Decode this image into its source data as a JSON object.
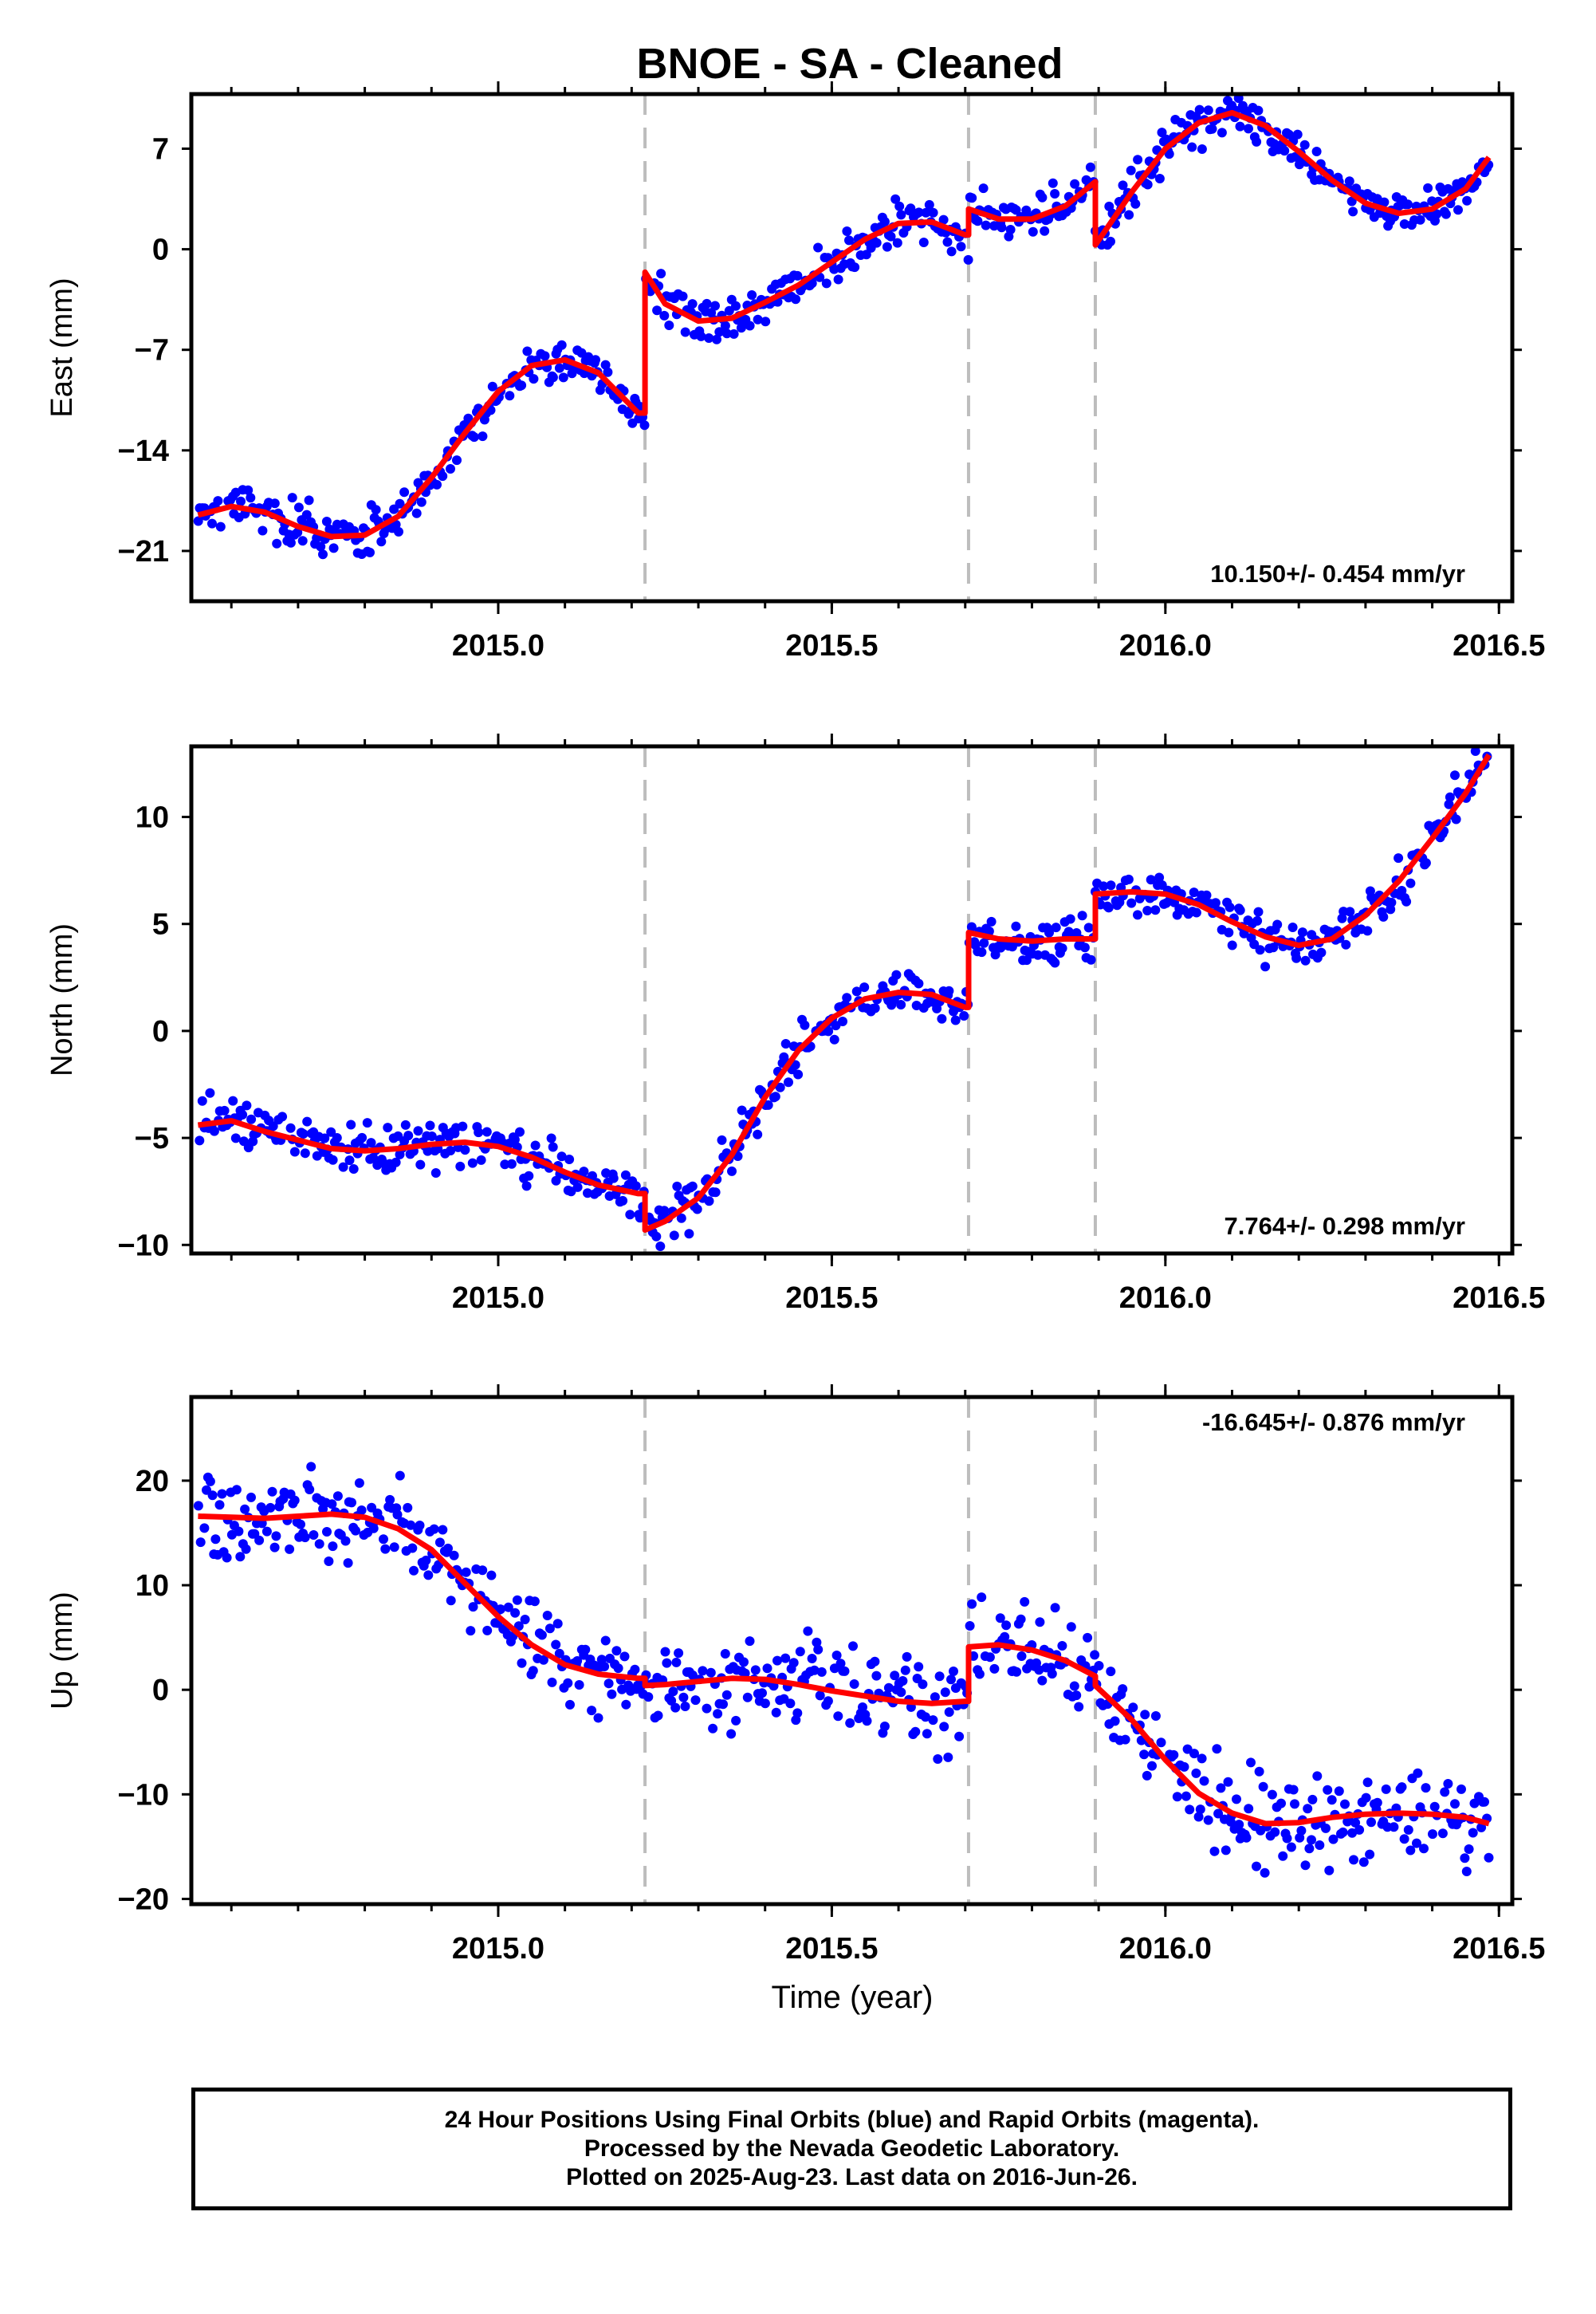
{
  "title": "BNOE  - SA - Cleaned",
  "xlabel": "Time (year)",
  "footer": {
    "line1": "24 Hour Positions Using Final Orbits (blue) and Rapid Orbits (magenta).",
    "line2": "Processed by the Nevada Geodetic Laboratory.",
    "line3": "Plotted on 2025-Aug-23. Last data on 2016-Jun-26."
  },
  "colors": {
    "points": "#0000ff",
    "model": "#ff0000",
    "breaks": "#bdbdbd",
    "frame": "#000000"
  },
  "chart_data": [
    {
      "type": "scatter",
      "ylabel": "East (mm)",
      "rate_label": "10.150+/- 0.454 mm/yr",
      "xlim": [
        2014.54,
        2016.52
      ],
      "ylim": [
        -24.5,
        10.8
      ],
      "yticks": [
        7,
        0,
        -7,
        -14,
        -21
      ],
      "xticks": [
        2015.0,
        2015.5,
        2016.0,
        2016.5
      ],
      "xticklabels": [
        "2015.0",
        "2015.5",
        "2016.0",
        "2016.5"
      ],
      "breaks": [
        2015.22,
        2015.705,
        2015.895
      ],
      "model": [
        [
          2014.55,
          -18.5
        ],
        [
          2014.6,
          -17.9
        ],
        [
          2014.65,
          -18.3
        ],
        [
          2014.7,
          -19.3
        ],
        [
          2014.75,
          -20.0
        ],
        [
          2014.8,
          -19.9
        ],
        [
          2014.85,
          -18.6
        ],
        [
          2014.9,
          -15.9
        ],
        [
          2014.95,
          -12.8
        ],
        [
          2015.0,
          -9.9
        ],
        [
          2015.05,
          -8.1
        ],
        [
          2015.1,
          -7.7
        ],
        [
          2015.15,
          -8.6
        ],
        [
          2015.21,
          -11.4
        ],
        [
          2015.22,
          -11.4
        ],
        [
          2015.22,
          -1.6
        ],
        [
          2015.25,
          -3.8
        ],
        [
          2015.3,
          -5.0
        ],
        [
          2015.35,
          -4.8
        ],
        [
          2015.4,
          -3.7
        ],
        [
          2015.45,
          -2.5
        ],
        [
          2015.5,
          -0.9
        ],
        [
          2015.55,
          0.7
        ],
        [
          2015.6,
          1.8
        ],
        [
          2015.65,
          1.9
        ],
        [
          2015.7,
          1.0
        ],
        [
          2015.705,
          1.0
        ],
        [
          2015.705,
          2.8
        ],
        [
          2015.75,
          2.1
        ],
        [
          2015.8,
          2.1
        ],
        [
          2015.85,
          3.0
        ],
        [
          2015.895,
          4.7
        ],
        [
          2015.895,
          0.3
        ],
        [
          2015.95,
          4.0
        ],
        [
          2016.0,
          7.0
        ],
        [
          2016.05,
          8.8
        ],
        [
          2016.1,
          9.5
        ],
        [
          2016.15,
          8.6
        ],
        [
          2016.2,
          6.8
        ],
        [
          2016.25,
          4.8
        ],
        [
          2016.3,
          3.2
        ],
        [
          2016.35,
          2.5
        ],
        [
          2016.4,
          2.8
        ],
        [
          2016.45,
          4.2
        ],
        [
          2016.485,
          6.4
        ]
      ],
      "noise": 1.1
    },
    {
      "type": "scatter",
      "ylabel": "North (mm)",
      "rate_label": "7.764+/- 0.298 mm/yr",
      "xlim": [
        2014.54,
        2016.52
      ],
      "ylim": [
        -10.4,
        13.3
      ],
      "yticks": [
        10,
        5,
        0,
        -5,
        -10
      ],
      "xticks": [
        2015.0,
        2015.5,
        2016.0,
        2016.5
      ],
      "xticklabels": [
        "2015.0",
        "2015.5",
        "2016.0",
        "2016.5"
      ],
      "breaks": [
        2015.22,
        2015.705,
        2015.895
      ],
      "model": [
        [
          2014.55,
          -4.4
        ],
        [
          2014.6,
          -4.2
        ],
        [
          2014.65,
          -4.7
        ],
        [
          2014.7,
          -5.1
        ],
        [
          2014.75,
          -5.5
        ],
        [
          2014.8,
          -5.6
        ],
        [
          2014.85,
          -5.5
        ],
        [
          2014.9,
          -5.3
        ],
        [
          2014.95,
          -5.2
        ],
        [
          2015.0,
          -5.4
        ],
        [
          2015.05,
          -5.9
        ],
        [
          2015.1,
          -6.6
        ],
        [
          2015.15,
          -7.2
        ],
        [
          2015.21,
          -7.6
        ],
        [
          2015.22,
          -7.6
        ],
        [
          2015.22,
          -9.3
        ],
        [
          2015.25,
          -8.9
        ],
        [
          2015.3,
          -7.8
        ],
        [
          2015.35,
          -5.8
        ],
        [
          2015.4,
          -3.1
        ],
        [
          2015.45,
          -0.9
        ],
        [
          2015.5,
          0.6
        ],
        [
          2015.55,
          1.5
        ],
        [
          2015.6,
          1.8
        ],
        [
          2015.65,
          1.7
        ],
        [
          2015.7,
          1.1
        ],
        [
          2015.705,
          1.1
        ],
        [
          2015.705,
          4.6
        ],
        [
          2015.75,
          4.3
        ],
        [
          2015.8,
          4.2
        ],
        [
          2015.85,
          4.3
        ],
        [
          2015.895,
          4.3
        ],
        [
          2015.895,
          6.4
        ],
        [
          2015.95,
          6.5
        ],
        [
          2016.0,
          6.4
        ],
        [
          2016.05,
          5.9
        ],
        [
          2016.1,
          5.1
        ],
        [
          2016.15,
          4.4
        ],
        [
          2016.2,
          4.0
        ],
        [
          2016.25,
          4.3
        ],
        [
          2016.3,
          5.4
        ],
        [
          2016.35,
          7.0
        ],
        [
          2016.4,
          9.0
        ],
        [
          2016.45,
          11.1
        ],
        [
          2016.485,
          12.9
        ]
      ],
      "noise": 0.75
    },
    {
      "type": "scatter",
      "ylabel": "Up (mm)",
      "rate_label": "-16.645+/- 0.876 mm/yr",
      "xlim": [
        2014.54,
        2016.52
      ],
      "ylim": [
        -20.5,
        28.0
      ],
      "yticks": [
        20,
        10,
        0,
        -10,
        -20
      ],
      "xticks": [
        2015.0,
        2015.5,
        2016.0,
        2016.5
      ],
      "xticklabels": [
        "2015.0",
        "2015.5",
        "2016.0",
        "2016.5"
      ],
      "breaks": [
        2015.22,
        2015.705,
        2015.895
      ],
      "model": [
        [
          2014.55,
          16.6
        ],
        [
          2014.6,
          16.5
        ],
        [
          2014.65,
          16.4
        ],
        [
          2014.7,
          16.6
        ],
        [
          2014.75,
          16.8
        ],
        [
          2014.8,
          16.5
        ],
        [
          2014.85,
          15.4
        ],
        [
          2014.9,
          13.4
        ],
        [
          2014.95,
          10.2
        ],
        [
          2015.0,
          7.0
        ],
        [
          2015.05,
          4.3
        ],
        [
          2015.1,
          2.4
        ],
        [
          2015.15,
          1.5
        ],
        [
          2015.21,
          1.1
        ],
        [
          2015.22,
          1.1
        ],
        [
          2015.22,
          0.4
        ],
        [
          2015.25,
          0.5
        ],
        [
          2015.3,
          0.8
        ],
        [
          2015.35,
          1.1
        ],
        [
          2015.4,
          1.0
        ],
        [
          2015.45,
          0.5
        ],
        [
          2015.5,
          -0.1
        ],
        [
          2015.55,
          -0.6
        ],
        [
          2015.6,
          -1.1
        ],
        [
          2015.65,
          -1.3
        ],
        [
          2015.7,
          -1.1
        ],
        [
          2015.705,
          -1.1
        ],
        [
          2015.705,
          4.1
        ],
        [
          2015.75,
          4.3
        ],
        [
          2015.8,
          3.8
        ],
        [
          2015.85,
          2.8
        ],
        [
          2015.895,
          1.3
        ],
        [
          2015.895,
          0.4
        ],
        [
          2015.95,
          -2.9
        ],
        [
          2016.0,
          -6.7
        ],
        [
          2016.05,
          -9.9
        ],
        [
          2016.1,
          -11.8
        ],
        [
          2016.15,
          -12.8
        ],
        [
          2016.2,
          -12.7
        ],
        [
          2016.25,
          -12.2
        ],
        [
          2016.3,
          -11.9
        ],
        [
          2016.35,
          -11.8
        ],
        [
          2016.4,
          -11.9
        ],
        [
          2016.45,
          -12.2
        ],
        [
          2016.485,
          -12.8
        ]
      ],
      "noise": 3.0
    }
  ]
}
